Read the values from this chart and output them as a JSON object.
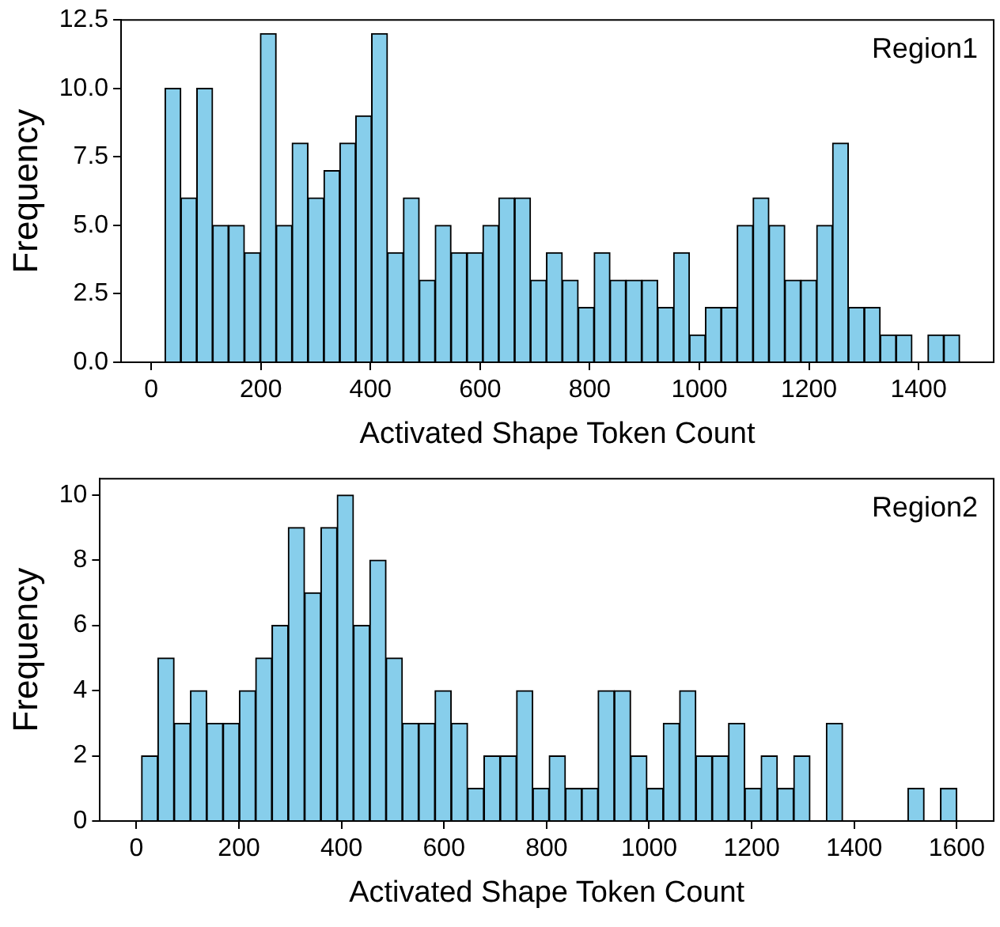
{
  "chart_data": [
    {
      "type": "histogram",
      "xlabel": "Activated Shape Token Count",
      "ylabel": "Frequency",
      "annotations": [
        "Region1"
      ],
      "color": "#87ceeb",
      "bins": [
        25,
        54,
        83,
        112,
        141,
        170,
        199,
        228,
        257,
        286,
        315,
        344,
        373,
        402,
        431,
        460,
        489,
        518,
        547,
        576,
        605,
        634,
        663,
        692,
        721,
        750,
        779,
        808,
        837,
        866,
        895,
        924,
        953,
        982,
        1011,
        1040,
        1069,
        1098,
        1127,
        1156,
        1185,
        1214,
        1243,
        1272,
        1301,
        1330,
        1359,
        1388,
        1417,
        1446,
        1475
      ],
      "values": [
        10,
        6,
        10,
        5,
        5,
        4,
        12,
        5,
        8,
        6,
        7,
        8,
        9,
        12,
        4,
        6,
        3,
        5,
        4,
        4,
        5,
        6,
        6,
        3,
        4,
        3,
        2,
        4,
        3,
        3,
        3,
        2,
        4,
        1,
        2,
        2,
        5,
        6,
        5,
        3,
        3,
        5,
        8,
        2,
        2,
        1,
        1,
        0,
        1,
        1
      ],
      "xlim": [
        -55,
        1537
      ],
      "xticks": [
        0,
        200,
        400,
        600,
        800,
        1000,
        1200,
        1400
      ],
      "ylim": [
        0,
        12.5
      ],
      "yticks": [
        {
          "value": 0,
          "label": "0.0"
        },
        {
          "value": 2.5,
          "label": "2.5"
        },
        {
          "value": 5,
          "label": "5.0"
        },
        {
          "value": 7.5,
          "label": "7.5"
        },
        {
          "value": 10,
          "label": "10.0"
        },
        12.5
      ]
    },
    {
      "type": "histogram",
      "xlabel": "Activated Shape Token Count",
      "ylabel": "Frequency",
      "annotations": [
        "Region2"
      ],
      "color": "#87ceeb",
      "bins": [
        10,
        41.8,
        73.6,
        105.4,
        137.2,
        169,
        200.8,
        232.6,
        264.4,
        296.2,
        328,
        359.8,
        391.6,
        423.4,
        455.2,
        487,
        518.8,
        550.6,
        582.4,
        614.2,
        646,
        677.8,
        709.6,
        741.4,
        773.2,
        805,
        836.8,
        868.6,
        900.4,
        932.2,
        964,
        995.8,
        1027.6,
        1059.4,
        1091.2,
        1123,
        1154.8,
        1186.6,
        1218.4,
        1250.2,
        1282,
        1313.8,
        1345.6,
        1377.4,
        1409.2,
        1441,
        1472.8,
        1504.6,
        1536.4,
        1568.2,
        1600
      ],
      "values": [
        2,
        5,
        3,
        4,
        3,
        3,
        4,
        5,
        6,
        9,
        7,
        9,
        10,
        6,
        8,
        5,
        3,
        3,
        4,
        3,
        1,
        2,
        2,
        4,
        1,
        2,
        1,
        1,
        4,
        4,
        2,
        1,
        3,
        4,
        2,
        2,
        3,
        1,
        2,
        1,
        2,
        0,
        3,
        0,
        0,
        0,
        0,
        1,
        0,
        1
      ],
      "xlim": [
        -71,
        1672
      ],
      "xticks": [
        0,
        200,
        400,
        600,
        800,
        1000,
        1200,
        1400,
        1600
      ],
      "ylim": [
        0,
        10.5
      ],
      "yticks": [
        0,
        2,
        4,
        6,
        8,
        10
      ]
    }
  ]
}
